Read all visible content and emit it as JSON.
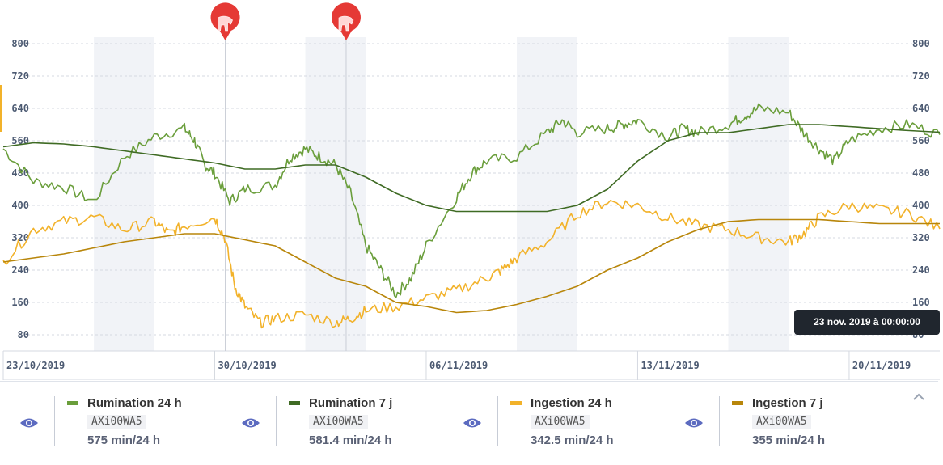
{
  "chart_data": {
    "type": "line",
    "x_start": "23/10/2019",
    "x_end": "23/11/2019",
    "x_ticks": [
      "23/10/2019",
      "30/10/2019",
      "06/11/2019",
      "13/11/2019",
      "20/11/2019"
    ],
    "ylim": [
      40,
      800
    ],
    "y_ticks": [
      80,
      160,
      240,
      320,
      400,
      480,
      560,
      640,
      720,
      800
    ],
    "weekend_bands": [
      [
        "26/10/2019",
        "28/10/2019"
      ],
      [
        "02/11/2019",
        "04/11/2019"
      ],
      [
        "09/11/2019",
        "11/11/2019"
      ],
      [
        "16/11/2019",
        "18/11/2019"
      ]
    ],
    "event_markers": [
      {
        "date": "30/10/2019",
        "icon": "cow-icon",
        "color": "#e53935"
      },
      {
        "date": "03/11/2019",
        "icon": "cow-icon",
        "color": "#e53935"
      }
    ],
    "tooltip": "23 nov. 2019 à 00:00:00",
    "series": [
      {
        "name": "Rumination 24 h",
        "id": "AXi00WA5",
        "value": "575 min/24 h",
        "color": "#6a9e3b",
        "points": [
          [
            "23/10/2019",
            540
          ],
          [
            "24/10/2019",
            460
          ],
          [
            "25/10/2019",
            445
          ],
          [
            "26/10/2019",
            410
          ],
          [
            "27/10/2019",
            520
          ],
          [
            "28/10/2019",
            570
          ],
          [
            "29/10/2019",
            590
          ],
          [
            "29/10/2019",
            560
          ],
          [
            "29/10/2019",
            500
          ],
          [
            "30/10/2019",
            480
          ],
          [
            "30/10/2019",
            410
          ],
          [
            "31/10/2019",
            440
          ],
          [
            "01/11/2019",
            450
          ],
          [
            "01/11/2019",
            520
          ],
          [
            "02/11/2019",
            540
          ],
          [
            "02/11/2019",
            520
          ],
          [
            "03/11/2019",
            500
          ],
          [
            "03/11/2019",
            430
          ],
          [
            "04/11/2019",
            300
          ],
          [
            "04/11/2019",
            240
          ],
          [
            "05/11/2019",
            180
          ],
          [
            "05/11/2019",
            220
          ],
          [
            "06/11/2019",
            300
          ],
          [
            "07/11/2019",
            420
          ],
          [
            "07/11/2019",
            480
          ],
          [
            "08/11/2019",
            510
          ],
          [
            "09/11/2019",
            520
          ],
          [
            "10/11/2019",
            580
          ],
          [
            "10/11/2019",
            610
          ],
          [
            "11/11/2019",
            580
          ],
          [
            "12/11/2019",
            590
          ],
          [
            "12/11/2019",
            600
          ],
          [
            "13/11/2019",
            610
          ],
          [
            "14/11/2019",
            570
          ],
          [
            "14/11/2019",
            590
          ],
          [
            "15/11/2019",
            580
          ],
          [
            "16/11/2019",
            600
          ],
          [
            "16/11/2019",
            620
          ],
          [
            "17/11/2019",
            640
          ],
          [
            "18/11/2019",
            630
          ],
          [
            "18/11/2019",
            580
          ],
          [
            "19/11/2019",
            540
          ],
          [
            "19/11/2019",
            510
          ],
          [
            "20/11/2019",
            560
          ],
          [
            "21/11/2019",
            590
          ],
          [
            "22/11/2019",
            600
          ],
          [
            "23/11/2019",
            575
          ]
        ]
      },
      {
        "name": "Rumination 7 j",
        "id": "AXi00WA5",
        "value": "581.4 min/24 h",
        "color": "#3f6b24",
        "points": [
          [
            "23/10/2019",
            545
          ],
          [
            "24/10/2019",
            555
          ],
          [
            "25/10/2019",
            552
          ],
          [
            "26/10/2019",
            545
          ],
          [
            "27/10/2019",
            535
          ],
          [
            "28/10/2019",
            525
          ],
          [
            "29/10/2019",
            515
          ],
          [
            "30/10/2019",
            505
          ],
          [
            "31/10/2019",
            490
          ],
          [
            "01/11/2019",
            490
          ],
          [
            "02/11/2019",
            500
          ],
          [
            "03/11/2019",
            500
          ],
          [
            "04/11/2019",
            470
          ],
          [
            "05/11/2019",
            430
          ],
          [
            "06/11/2019",
            400
          ],
          [
            "07/11/2019",
            385
          ],
          [
            "08/11/2019",
            385
          ],
          [
            "09/11/2019",
            385
          ],
          [
            "10/11/2019",
            385
          ],
          [
            "11/11/2019",
            400
          ],
          [
            "12/11/2019",
            440
          ],
          [
            "13/11/2019",
            510
          ],
          [
            "14/11/2019",
            560
          ],
          [
            "15/11/2019",
            580
          ],
          [
            "16/11/2019",
            580
          ],
          [
            "17/11/2019",
            590
          ],
          [
            "18/11/2019",
            600
          ],
          [
            "19/11/2019",
            600
          ],
          [
            "20/11/2019",
            595
          ],
          [
            "21/11/2019",
            590
          ],
          [
            "22/11/2019",
            585
          ],
          [
            "23/11/2019",
            581
          ]
        ]
      },
      {
        "name": "Ingestion 24 h",
        "id": "AXi00WA5",
        "value": "342.5 min/24 h",
        "color": "#f2b22a",
        "points": [
          [
            "23/10/2019",
            260
          ],
          [
            "24/10/2019",
            340
          ],
          [
            "25/10/2019",
            360
          ],
          [
            "26/10/2019",
            370
          ],
          [
            "27/10/2019",
            340
          ],
          [
            "28/10/2019",
            360
          ],
          [
            "28/10/2019",
            330
          ],
          [
            "29/10/2019",
            350
          ],
          [
            "30/10/2019",
            370
          ],
          [
            "30/10/2019",
            320
          ],
          [
            "30/10/2019",
            200
          ],
          [
            "31/10/2019",
            150
          ],
          [
            "31/10/2019",
            110
          ],
          [
            "01/11/2019",
            120
          ],
          [
            "02/11/2019",
            130
          ],
          [
            "03/11/2019",
            110
          ],
          [
            "03/11/2019",
            120
          ],
          [
            "04/11/2019",
            140
          ],
          [
            "05/11/2019",
            150
          ],
          [
            "06/11/2019",
            170
          ],
          [
            "07/11/2019",
            190
          ],
          [
            "08/11/2019",
            220
          ],
          [
            "08/11/2019",
            240
          ],
          [
            "09/11/2019",
            270
          ],
          [
            "10/11/2019",
            310
          ],
          [
            "11/11/2019",
            380
          ],
          [
            "12/11/2019",
            410
          ],
          [
            "13/11/2019",
            400
          ],
          [
            "14/11/2019",
            370
          ],
          [
            "15/11/2019",
            350
          ],
          [
            "16/11/2019",
            340
          ],
          [
            "17/11/2019",
            320
          ],
          [
            "18/11/2019",
            310
          ],
          [
            "18/11/2019",
            330
          ],
          [
            "19/11/2019",
            370
          ],
          [
            "20/11/2019",
            400
          ],
          [
            "21/11/2019",
            390
          ],
          [
            "22/11/2019",
            380
          ],
          [
            "23/11/2019",
            342
          ]
        ]
      },
      {
        "name": "Ingestion 7 j",
        "id": "AXi00WA5",
        "value": "355 min/24 h",
        "color": "#b8860b",
        "points": [
          [
            "23/10/2019",
            260
          ],
          [
            "25/10/2019",
            280
          ],
          [
            "27/10/2019",
            310
          ],
          [
            "29/10/2019",
            330
          ],
          [
            "30/10/2019",
            330
          ],
          [
            "01/11/2019",
            300
          ],
          [
            "02/11/2019",
            260
          ],
          [
            "03/11/2019",
            220
          ],
          [
            "04/11/2019",
            200
          ],
          [
            "05/11/2019",
            160
          ],
          [
            "06/11/2019",
            150
          ],
          [
            "07/11/2019",
            135
          ],
          [
            "08/11/2019",
            140
          ],
          [
            "09/11/2019",
            155
          ],
          [
            "10/11/2019",
            175
          ],
          [
            "11/11/2019",
            200
          ],
          [
            "12/11/2019",
            240
          ],
          [
            "13/11/2019",
            270
          ],
          [
            "14/11/2019",
            310
          ],
          [
            "15/11/2019",
            340
          ],
          [
            "16/11/2019",
            360
          ],
          [
            "17/11/2019",
            365
          ],
          [
            "18/11/2019",
            365
          ],
          [
            "19/11/2019",
            365
          ],
          [
            "20/11/2019",
            360
          ],
          [
            "21/11/2019",
            355
          ],
          [
            "22/11/2019",
            355
          ],
          [
            "23/11/2019",
            355
          ]
        ]
      }
    ]
  }
}
